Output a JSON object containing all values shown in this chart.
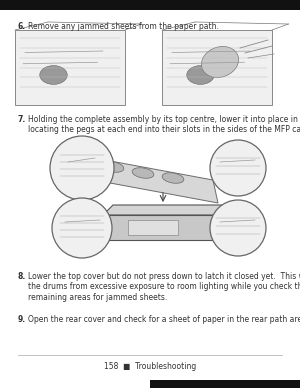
{
  "bg_color": "#ffffff",
  "text_color": "#333333",
  "footer_text": "158  ■  Troubleshooting",
  "step6_label": "6.",
  "step6_text": "Remove any jammed sheets from the paper path.",
  "step7_label": "7.",
  "step7_text": "Holding the complete assembly by its top centre, lower it into place in the MFP,\nlocating the pegs at each end into their slots in the sides of the MFP cavity.",
  "step8_label": "8.",
  "step8_text": "Lower the top cover but do not press down to latch it closed yet.  This will protect\nthe drums from excessive exposure to room lighting while you check the\nremaining areas for jammed sheets.",
  "step9_label": "9.",
  "step9_text": "Open the rear cover and check for a sheet of paper in the rear path area.",
  "top_bar_color": "#111111",
  "bot_bar_color": "#111111",
  "footer_line_color": "#aaaaaa",
  "img_bg": "#e8e8e8",
  "sketch_line": "#777777",
  "sketch_fill": "#cccccc",
  "circle_fill": "#f0f0f0",
  "circle_edge": "#666666"
}
